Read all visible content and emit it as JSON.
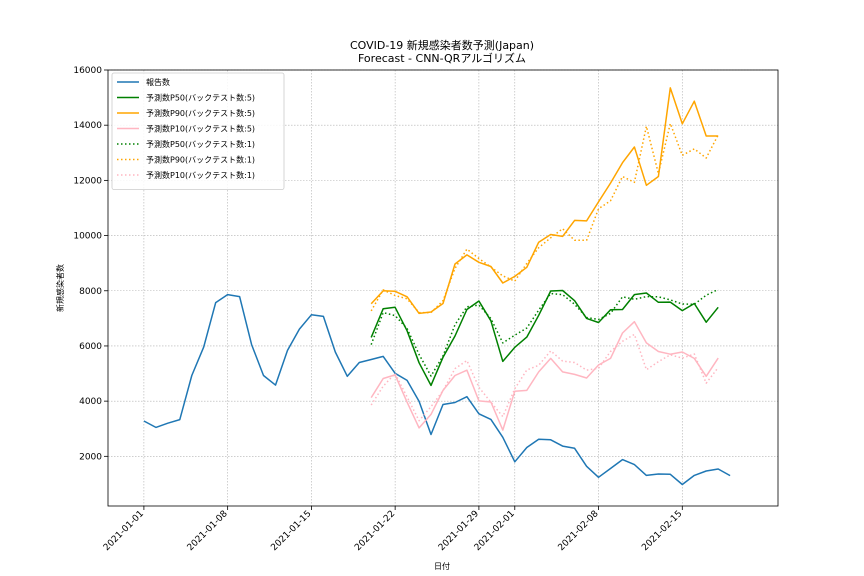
{
  "chart_data": {
    "type": "line",
    "title": "COVID-19 新規感染者数予測(Japan)",
    "subtitle": "Forecast - CNN-QRアルゴリズム",
    "xlabel": "日付",
    "ylabel": "新規感染者数",
    "ylim": [
      200,
      16000
    ],
    "xlim": [
      "2020-12-29",
      "2021-02-23"
    ],
    "x_ticks": [
      "2021-01-01",
      "2021-01-08",
      "2021-01-15",
      "2021-01-22",
      "2021-01-29",
      "2021-02-01",
      "2021-02-08",
      "2021-02-15"
    ],
    "y_ticks": [
      2000,
      4000,
      6000,
      8000,
      10000,
      12000,
      14000,
      16000
    ],
    "grid": true,
    "legend_position": "top-left",
    "series": [
      {
        "name": "報告数",
        "color": "#1f77b4",
        "style": "solid",
        "start": "2021-01-01",
        "values": [
          3280,
          3050,
          3200,
          3330,
          4930,
          5960,
          7570,
          7860,
          7790,
          6050,
          4930,
          4580,
          5840,
          6610,
          7130,
          7070,
          5780,
          4900,
          5400,
          5510,
          5620,
          5010,
          4750,
          3990,
          2790,
          3880,
          3950,
          4160,
          3540,
          3340,
          2690,
          1800,
          2320,
          2620,
          2600,
          2370,
          2290,
          1640,
          1240,
          1560,
          1880,
          1700,
          1310,
          1360,
          1350,
          980,
          1310,
          1470,
          1540,
          1300
        ]
      },
      {
        "name": "予測数P50(バックテスト数:5)",
        "color": "#008000",
        "style": "solid",
        "start": "2021-01-20",
        "values": [
          6310,
          7350,
          7400,
          6550,
          5390,
          4570,
          5590,
          6360,
          7320,
          7630,
          6910,
          5440,
          5950,
          6320,
          7110,
          7990,
          8010,
          7640,
          7000,
          6850,
          7310,
          7320,
          7860,
          7920,
          7580,
          7590,
          7280,
          7540,
          6860,
          7400
        ]
      },
      {
        "name": "予測数P90(バックテスト数:5)",
        "color": "#ffa500",
        "style": "solid",
        "start": "2021-01-20",
        "values": [
          7530,
          8000,
          7980,
          7780,
          7180,
          7230,
          7540,
          8970,
          9300,
          9030,
          8880,
          8280,
          8520,
          8850,
          9760,
          10040,
          9970,
          10550,
          10530,
          11220,
          11900,
          12640,
          13210,
          11820,
          12140,
          15350,
          14050,
          14870,
          13610,
          13610
        ]
      },
      {
        "name": "予測数P10(バックテスト数:5)",
        "color": "#ffb6c1",
        "style": "solid",
        "start": "2021-01-20",
        "values": [
          4130,
          4820,
          4950,
          3960,
          3030,
          3520,
          4390,
          4930,
          5120,
          4010,
          3970,
          2950,
          4360,
          4390,
          5060,
          5550,
          5060,
          4970,
          4840,
          5310,
          5550,
          6470,
          6880,
          6110,
          5800,
          5700,
          5780,
          5550,
          4900,
          5560
        ]
      },
      {
        "name": "予測数P50(バックテスト数:1)",
        "color": "#008000",
        "style": "dotted",
        "start": "2021-01-20",
        "values": [
          6050,
          7210,
          7100,
          6630,
          5690,
          4910,
          5640,
          6770,
          7420,
          7480,
          6990,
          6110,
          6390,
          6650,
          7300,
          7900,
          7860,
          7510,
          7030,
          6960,
          7180,
          7780,
          7690,
          7790,
          7780,
          7670,
          7520,
          7510,
          7840,
          8050
        ]
      },
      {
        "name": "予測数P90(バックテスト数:1)",
        "color": "#ffa500",
        "style": "dotted",
        "start": "2021-01-20",
        "values": [
          7270,
          8030,
          7830,
          7710,
          7210,
          7210,
          7640,
          8810,
          9510,
          9170,
          8860,
          8540,
          8350,
          8990,
          9560,
          9920,
          10250,
          9830,
          9830,
          10970,
          11260,
          12140,
          11930,
          13960,
          12250,
          14060,
          12910,
          13140,
          12810,
          13650
        ]
      },
      {
        "name": "予測数P10(バックテスト数:1)",
        "color": "#ffb6c1",
        "style": "dotted",
        "start": "2021-01-20",
        "values": [
          3860,
          4540,
          5000,
          4150,
          3290,
          3800,
          4380,
          5180,
          5470,
          4500,
          3960,
          3440,
          4450,
          5130,
          5300,
          5820,
          5450,
          5400,
          5120,
          5190,
          5800,
          6170,
          6420,
          5140,
          5430,
          5680,
          5560,
          5710,
          4650,
          5220
        ]
      }
    ]
  }
}
